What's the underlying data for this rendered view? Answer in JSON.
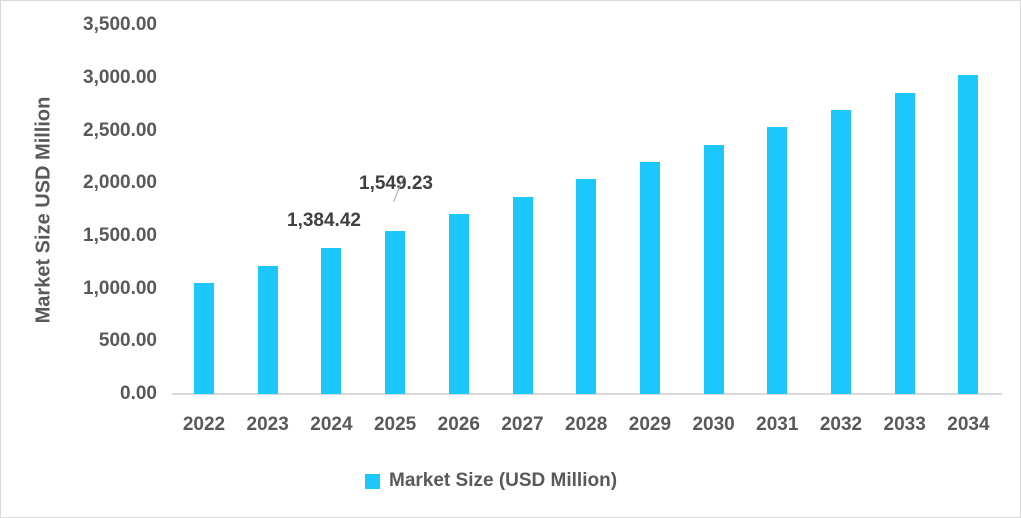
{
  "chart_data": {
    "type": "bar",
    "title": "",
    "xlabel": "",
    "ylabel": "Market Size USD Million",
    "ylim": [
      0,
      3500
    ],
    "yticks": [
      "0.00",
      "500.00",
      "1,000.00",
      "1,500.00",
      "2,000.00",
      "2,500.00",
      "3,000.00",
      "3,500.00"
    ],
    "categories": [
      "2022",
      "2023",
      "2024",
      "2025",
      "2026",
      "2027",
      "2028",
      "2029",
      "2030",
      "2031",
      "2032",
      "2033",
      "2034"
    ],
    "series": [
      {
        "name": "Market Size (USD Million)",
        "color": "#1cc8fb",
        "values": [
          1053,
          1214,
          1384.42,
          1549.23,
          1708,
          1869,
          2040,
          2201,
          2362,
          2533,
          2694,
          2856,
          3027
        ]
      }
    ],
    "annotations": [
      {
        "category": "2024",
        "label": "1,384.42"
      },
      {
        "category": "2025",
        "label": "1,549.23"
      }
    ],
    "grid": false,
    "legend_position": "bottom"
  },
  "labels": {
    "ylabel": "Market Size USD Million",
    "legend": "Market Size (USD Million)",
    "annot_2024": "1,384.42",
    "annot_2025": "1,549.23"
  }
}
